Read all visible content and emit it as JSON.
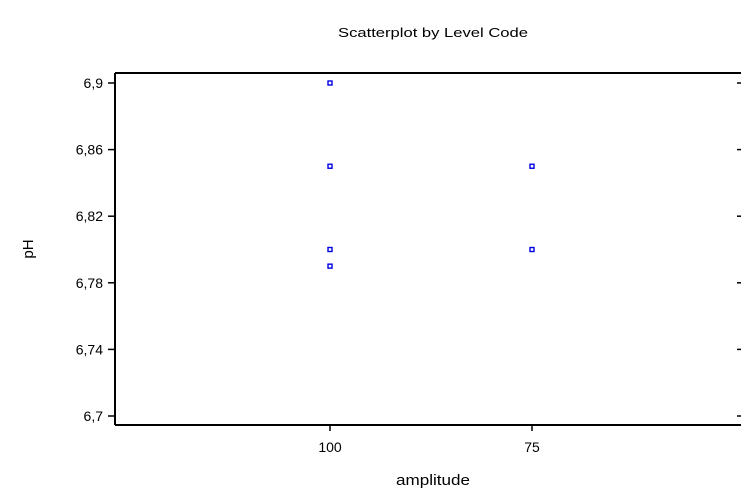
{
  "chart_data": {
    "type": "scatter",
    "title": "Scatterplot by Level Code",
    "xlabel": "amplitude",
    "ylabel": "pH",
    "categories": [
      "100",
      "75"
    ],
    "y_ticks": [
      "6,9",
      "6,86",
      "6,82",
      "6,78",
      "6,74",
      "6,7"
    ],
    "y_tick_values": [
      6.9,
      6.86,
      6.82,
      6.78,
      6.74,
      6.7
    ],
    "ylim": [
      6.7,
      6.9
    ],
    "grid": false,
    "legend": "none",
    "marker_color": "#0000e0",
    "points": [
      {
        "x": "100",
        "y": 6.9
      },
      {
        "x": "100",
        "y": 6.85
      },
      {
        "x": "100",
        "y": 6.8
      },
      {
        "x": "100",
        "y": 6.79
      },
      {
        "x": "75",
        "y": 6.85
      },
      {
        "x": "75",
        "y": 6.8
      }
    ]
  }
}
